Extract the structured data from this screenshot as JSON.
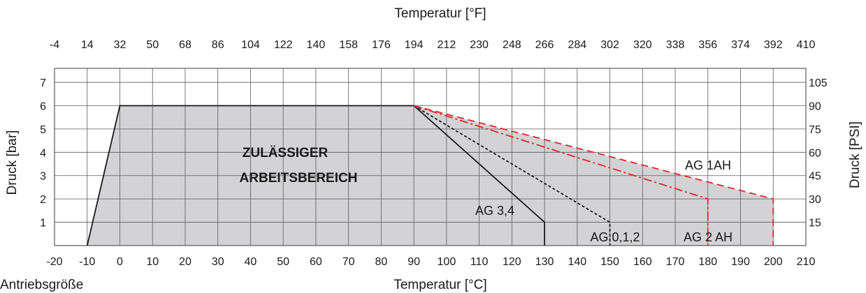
{
  "chart_data": {
    "type": "area",
    "title": "",
    "xlabel": "Temperatur [°C]",
    "xlabel_top": "Temperatur [°F]",
    "ylabel": "Druck [bar]",
    "ylabel_right": "Druck [PSI]",
    "bottom_left_label": "Antriebsgröße",
    "area_label": [
      "ZULÄSSIGER",
      "ARBEITSBEREICH"
    ],
    "xlim": [
      -20,
      210
    ],
    "ylim": [
      0,
      7.6
    ],
    "grid": true,
    "x_ticks_c": [
      "-20",
      "-10",
      "0",
      "10",
      "20",
      "30",
      "40",
      "50",
      "60",
      "70",
      "80",
      "90",
      "100",
      "110",
      "120",
      "130",
      "140",
      "150",
      "160",
      "170",
      "180",
      "190",
      "200",
      "210"
    ],
    "x_ticks_f": [
      "-4",
      "14",
      "32",
      "50",
      "68",
      "86",
      "104",
      "122",
      "140",
      "158",
      "176",
      "194",
      "212",
      "230",
      "248",
      "266",
      "284",
      "302",
      "320",
      "338",
      "356",
      "374",
      "392",
      "410"
    ],
    "y_ticks_bar": [
      "1",
      "2",
      "3",
      "4",
      "5",
      "6",
      "7"
    ],
    "y_ticks_psi": [
      "15",
      "30",
      "45",
      "60",
      "75",
      "90",
      "105"
    ],
    "envelope": {
      "x": [
        -10,
        0,
        90,
        200,
        200
      ],
      "y": [
        0,
        6,
        6,
        2,
        0
      ]
    },
    "series": [
      {
        "name": "AG 3,4",
        "style": "solid",
        "color": "#1a1a1a",
        "x": [
          90,
          130,
          130
        ],
        "y": [
          6,
          1,
          0
        ]
      },
      {
        "name": "AG 0,1,2",
        "style": "dotted",
        "color": "#1a1a1a",
        "x": [
          90,
          150,
          150
        ],
        "y": [
          6,
          1,
          0
        ]
      },
      {
        "name": "AG 2 AH",
        "style": "dashdot",
        "color": "#e0262b",
        "x": [
          90,
          180,
          180
        ],
        "y": [
          6,
          2,
          0
        ]
      },
      {
        "name": "AG 1AH",
        "style": "dashed",
        "color": "#e0262b",
        "x": [
          90,
          200,
          200
        ],
        "y": [
          6,
          2,
          0
        ]
      }
    ],
    "colors": {
      "area": "#d3d3d5",
      "grid": "#5a5a5a",
      "text": "#1a1a1a",
      "red": "#e0262b"
    }
  }
}
